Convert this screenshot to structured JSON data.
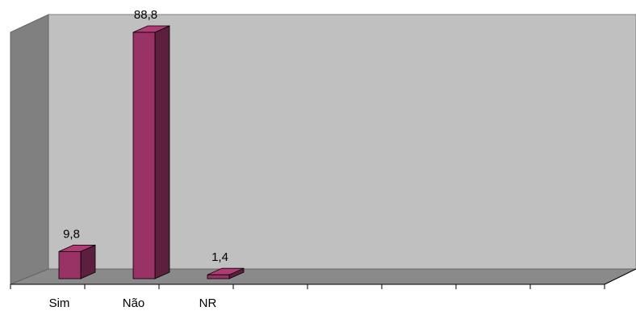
{
  "chart_data": {
    "type": "bar3d",
    "categories": [
      "Sim",
      "Não",
      "NR",
      null,
      null,
      null,
      null,
      null
    ],
    "values": [
      9.8,
      88.8,
      1.4,
      null,
      null,
      null,
      null,
      null
    ],
    "value_labels": [
      "9,8",
      "88,8",
      "1,4",
      null,
      null,
      null,
      null,
      null
    ],
    "color": "#993366"
  }
}
